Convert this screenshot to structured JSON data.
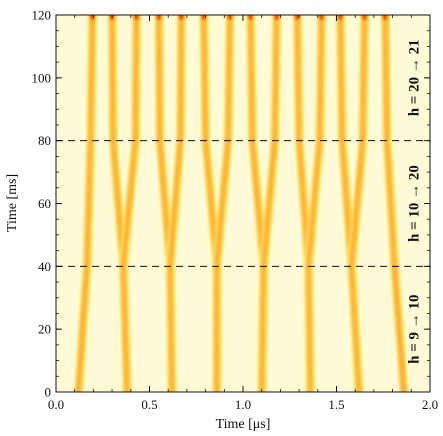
{
  "chart_data": {
    "type": "heatmap",
    "title": "",
    "xlabel": "Time [μs]",
    "ylabel": "Time [ms]",
    "xlim": [
      0.0,
      2.0
    ],
    "ylim": [
      0,
      120
    ],
    "x_ticks": [
      "0.0",
      "0.5",
      "1.0",
      "1.5",
      "2.0"
    ],
    "y_ticks": [
      "0",
      "20",
      "40",
      "60",
      "80",
      "100",
      "120"
    ],
    "colormap": [
      "#fffbd6",
      "#ffe96a",
      "#ffb000",
      "#ff6a00",
      "#e01a00",
      "#8c0000",
      "#200000"
    ],
    "dashed_lines_y": [
      40,
      80
    ],
    "annotations": [
      {
        "text": "h = 9 → 10",
        "y_range": [
          0,
          40
        ]
      },
      {
        "text": "h = 10 → 20",
        "y_range": [
          40,
          80
        ]
      },
      {
        "text": "h = 20 → 21",
        "y_range": [
          80,
          120
        ]
      }
    ],
    "series": [
      {
        "values": [
          [
            0,
            0.12
          ],
          [
            40,
            0.165
          ],
          [
            80,
            0.185
          ],
          [
            120,
            0.195
          ]
        ],
        "intensity": 0.55
      },
      {
        "values": [
          [
            0,
            0.38
          ],
          [
            40,
            0.36
          ],
          [
            80,
            0.305
          ],
          [
            120,
            0.3
          ]
        ],
        "intensity": 0.95
      },
      {
        "values": [
          [
            0,
            0.38
          ],
          [
            40,
            0.36
          ],
          [
            80,
            0.425
          ],
          [
            120,
            0.43
          ]
        ],
        "intensity": 0.0
      },
      {
        "values": [
          [
            0,
            0.62
          ],
          [
            40,
            0.61
          ],
          [
            80,
            0.555
          ],
          [
            120,
            0.55
          ]
        ],
        "intensity": 0.85
      },
      {
        "values": [
          [
            0,
            0.62
          ],
          [
            40,
            0.61
          ],
          [
            80,
            0.665
          ],
          [
            120,
            0.67
          ]
        ],
        "intensity": 0.0
      },
      {
        "values": [
          [
            0,
            0.86
          ],
          [
            40,
            0.86
          ],
          [
            80,
            0.8
          ],
          [
            120,
            0.79
          ]
        ],
        "intensity": 0.95
      },
      {
        "values": [
          [
            0,
            0.86
          ],
          [
            40,
            0.86
          ],
          [
            80,
            0.92
          ],
          [
            120,
            0.93
          ]
        ],
        "intensity": 0.0
      },
      {
        "values": [
          [
            0,
            1.1
          ],
          [
            40,
            1.11
          ],
          [
            80,
            1.05
          ],
          [
            120,
            1.04
          ]
        ],
        "intensity": 1.0
      },
      {
        "values": [
          [
            0,
            1.1
          ],
          [
            40,
            1.11
          ],
          [
            80,
            1.17
          ],
          [
            120,
            1.18
          ]
        ],
        "intensity": 0.0
      },
      {
        "values": [
          [
            0,
            1.36
          ],
          [
            40,
            1.35
          ],
          [
            80,
            1.3
          ],
          [
            120,
            1.29
          ]
        ],
        "intensity": 0.95
      },
      {
        "values": [
          [
            0,
            1.36
          ],
          [
            40,
            1.35
          ],
          [
            80,
            1.41
          ],
          [
            120,
            1.42
          ]
        ],
        "intensity": 0.0
      },
      {
        "values": [
          [
            0,
            1.62
          ],
          [
            40,
            1.58
          ],
          [
            80,
            1.53
          ],
          [
            120,
            1.52
          ]
        ],
        "intensity": 0.8
      },
      {
        "values": [
          [
            0,
            1.62
          ],
          [
            40,
            1.58
          ],
          [
            80,
            1.64
          ],
          [
            120,
            1.65
          ]
        ],
        "intensity": 0.0
      },
      {
        "values": [
          [
            0,
            1.86
          ],
          [
            40,
            1.81
          ],
          [
            80,
            1.77
          ],
          [
            120,
            1.76
          ]
        ],
        "intensity": 0.7
      }
    ]
  }
}
